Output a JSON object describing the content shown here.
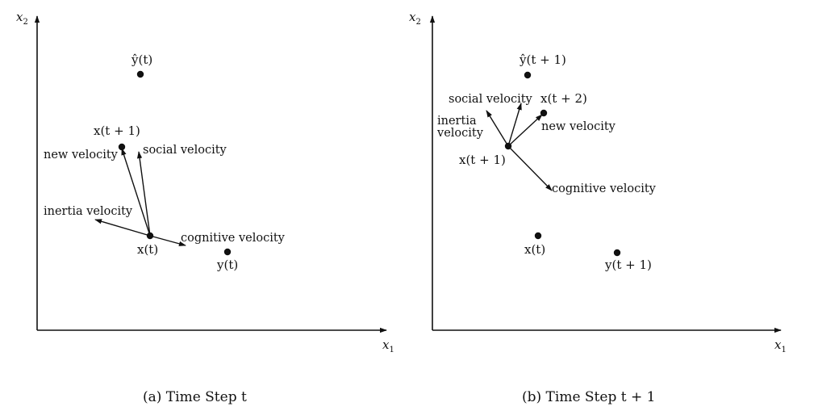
{
  "panels": [
    {
      "axes": {
        "x": "x1",
        "y": "x2"
      },
      "caption": "(a) Time Step t",
      "points": {
        "yhat": "ŷ(t)",
        "x_next": "x(t + 1)",
        "x": "x(t)",
        "y": "y(t)"
      },
      "vectors": {
        "new_velocity": "new velocity",
        "social_velocity": "social velocity",
        "inertia_velocity": "inertia velocity",
        "cognitive_velocity": "cognitive velocity"
      }
    },
    {
      "axes": {
        "x": "x1",
        "y": "x2"
      },
      "caption": "(b) Time Step t + 1",
      "points": {
        "yhat": "ŷ(t + 1)",
        "x_next": "x(t + 2)",
        "x": "x(t + 1)",
        "x_prev": "x(t)",
        "y": "y(t + 1)"
      },
      "vectors": {
        "social_velocity": "social velocity",
        "inertia_line1": "inertia",
        "inertia_line2": "velocity",
        "new_velocity": "new velocity",
        "cognitive_velocity": "cognitive velocity"
      }
    }
  ],
  "colors": {
    "ink": "#111111",
    "background": "#ffffff"
  }
}
